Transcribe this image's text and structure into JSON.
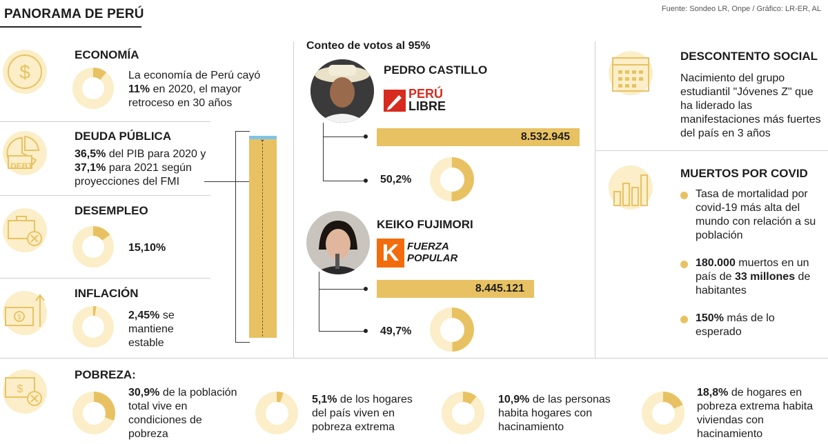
{
  "header": {
    "title": "PANORAMA DE PERÚ",
    "source": "Fuente: Sondeo LR, Onpe / Gráfico: LR-ER, AL"
  },
  "colors": {
    "accent": "#e8c262",
    "accent_light": "#fbeec8",
    "blue_cap": "#7fc4e8"
  },
  "left": {
    "economia": {
      "icon": "dollar-coin-icon",
      "heading": "ECONOMÍA",
      "text_pre": "La economía de Perú cayó",
      "text_bold": "11%",
      "text_post": "en 2020, el mayor retroceso en 30 años",
      "percent": 11
    },
    "deuda": {
      "icon": "pie-debt-icon",
      "icon_label": "DEBT",
      "heading": "DEUDA PÚBLICA",
      "bold1": "36,5%",
      "t1": "del PIB para 2020 y",
      "bold2": "37,1%",
      "t2": "para 2021 según proyecciones del FMI"
    },
    "desempleo": {
      "icon": "briefcase-x-icon",
      "heading": "DESEMPLEO",
      "value": "15,10%",
      "percent": 15.1
    },
    "inflacion": {
      "icon": "money-arrow-up-icon",
      "heading": "INFLACIÓN",
      "bold": "2,45%",
      "text": "se mantiene estable",
      "percent": 2.45
    }
  },
  "center": {
    "heading": "Conteo de votos al 95%",
    "candidates": [
      {
        "name": "PEDRO CASTILLO",
        "party_line1": "PERÚ",
        "party_line2": "LIBRE",
        "votes": "8.532.945",
        "percent_label": "50,2%",
        "percent": 50.2
      },
      {
        "name": "KEIKO FUJIMORI",
        "party_line1": "FUERZA",
        "party_line2": "POPULAR",
        "party_letter": "K",
        "votes": "8.445.121",
        "percent_label": "49,7%",
        "percent": 49.7
      }
    ]
  },
  "right": {
    "descontento": {
      "icon": "calendar-icon",
      "heading": "DESCONTENTO SOCIAL",
      "text": "Nacimiento del grupo estudiantil \"Jóvenes Z\" que ha liderado las manifestaciones más fuertes del país en 3 años"
    },
    "covid": {
      "icon": "bar-chart-icon",
      "heading": "MUERTOS POR COVID",
      "items": [
        {
          "text": "Tasa de mortalidad por covid-19 más alta del mundo con relación a su población"
        },
        {
          "bold1": "180.000",
          "t1": "muertos en un país de",
          "bold2": "33 millones",
          "t2": "de habitantes"
        },
        {
          "bold1": "150%",
          "t1": "más de lo esperado"
        }
      ]
    }
  },
  "pobreza": {
    "icon": "money-x-icon",
    "heading": "POBREZA:",
    "items": [
      {
        "bold": "30,9%",
        "text": "de la población total vive en condiciones de pobreza",
        "percent": 30.9
      },
      {
        "bold": "5,1%",
        "text": "de los hogares del país viven en pobreza extrema",
        "percent": 5.1
      },
      {
        "bold": "10,9%",
        "text": "de las personas habita hogares con hacinamiento",
        "percent": 10.9
      },
      {
        "bold": "18,8%",
        "text": "de hogares en pobreza extrema habita viviendas con hacinamiento",
        "percent": 18.8
      }
    ]
  }
}
